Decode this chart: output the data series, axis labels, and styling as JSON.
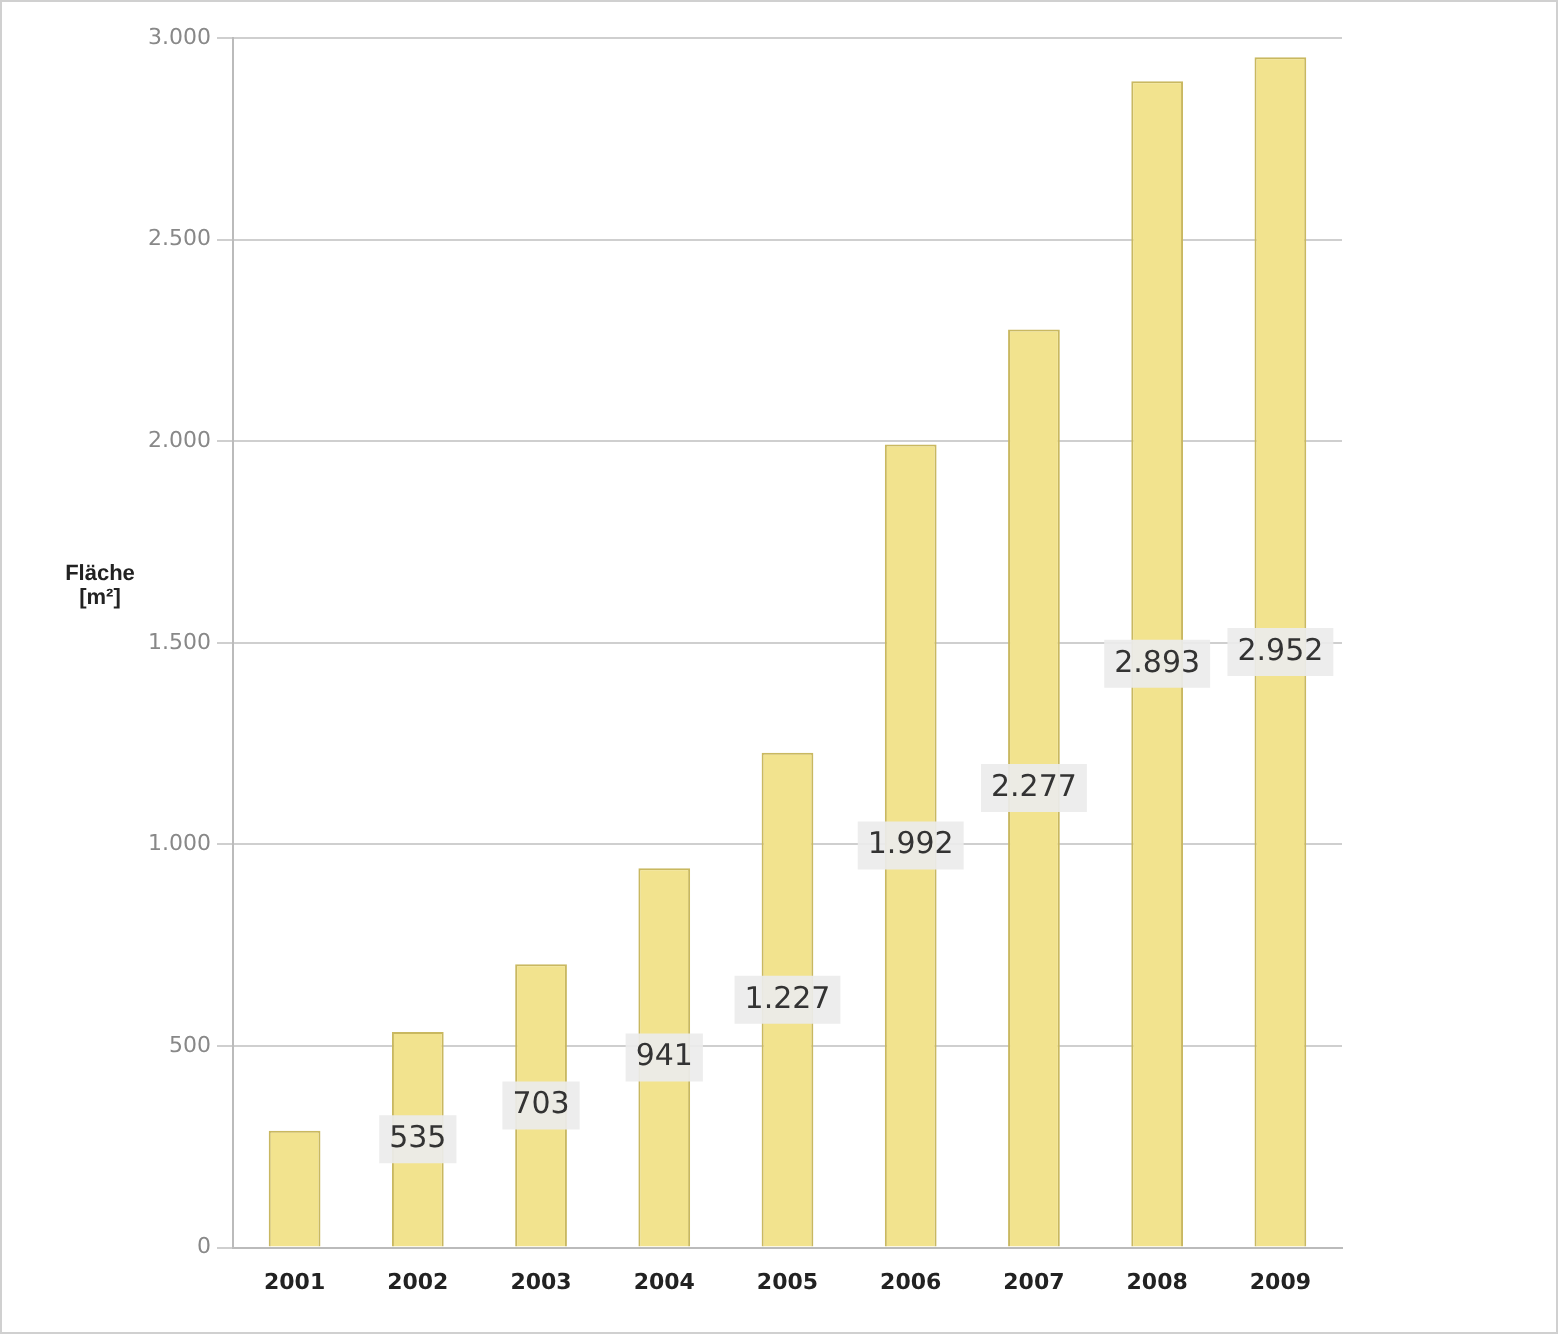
{
  "chart_data": {
    "type": "bar",
    "ylabel": "Fläche [m²]",
    "categories": [
      "2001",
      "2002",
      "2003",
      "2004",
      "2005",
      "2006",
      "2007",
      "2008",
      "2009"
    ],
    "values": [
      290,
      535,
      703,
      941,
      1227,
      1992,
      2277,
      2893,
      2952
    ],
    "value_labels": [
      null,
      "535",
      "703",
      "941",
      "1.227",
      "1.992",
      "2.277",
      "2.893",
      "2.952"
    ],
    "color": "#f2e38e",
    "ylim": [
      0,
      3000
    ],
    "yticks": [
      {
        "value": 0,
        "label": "0"
      },
      {
        "value": 500,
        "label": "500"
      },
      {
        "value": 1000,
        "label": "1.000"
      },
      {
        "value": 1500,
        "label": "1.500"
      },
      {
        "value": 2000,
        "label": "2.000"
      },
      {
        "value": 2500,
        "label": "2.500"
      },
      {
        "value": 3000,
        "label": "3.000"
      }
    ],
    "grid": "y",
    "legend": false
  }
}
